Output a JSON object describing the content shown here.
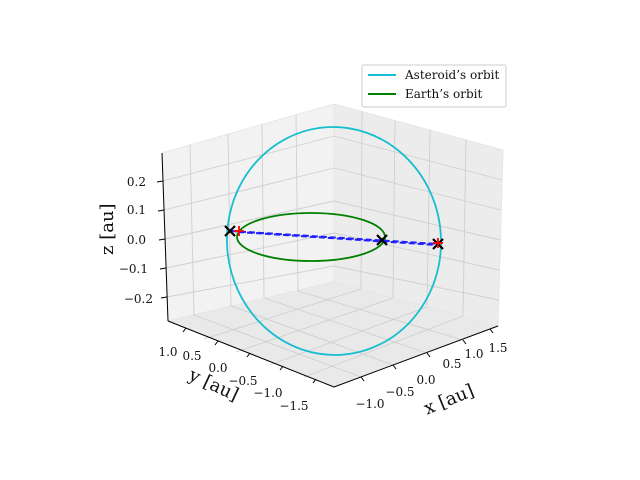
{
  "chart_data": {
    "type": "line3d",
    "xlabel": "x [au]",
    "ylabel": "y [au]",
    "zlabel": "z [au]",
    "x_ticks": [
      "−1.0",
      "−0.5",
      "0.0",
      "0.5",
      "1.0",
      "1.5"
    ],
    "y_ticks": [
      "−1.5",
      "−1.0",
      "−0.5",
      "0.0",
      "0.5",
      "1.0"
    ],
    "z_ticks": [
      "−0.2",
      "−0.1",
      "0.0",
      "0.1",
      "0.2"
    ],
    "grid": true,
    "legend": {
      "location": "top-right",
      "entries": [
        {
          "label": "Asteroid’s orbit",
          "color": "#17becf"
        },
        {
          "label": "Earth’s orbit",
          "color": "#008000"
        }
      ]
    },
    "series": [
      {
        "name": "Asteroid’s orbit",
        "color": "#17becf",
        "semi_major_axis_au": 1.47,
        "eccentricity": 0.27,
        "inclination_deg": 14,
        "ascending_node_deg": 0
      },
      {
        "name": "Earth’s orbit",
        "color": "#008000",
        "radius_au": 1.0,
        "inclination_deg": 0
      }
    ],
    "markers": [
      {
        "symbol": "x",
        "color": "#000000",
        "x": -1.0,
        "y": 0.05,
        "z": 0.02
      },
      {
        "symbol": "x",
        "color": "#000000",
        "x": 1.0,
        "y": -0.05,
        "z": -0.02
      },
      {
        "symbol": "x",
        "color": "#000000",
        "x": 1.07,
        "y": -0.84,
        "z": 0.0
      },
      {
        "symbol": "+",
        "color": "#ff0000",
        "x": -1.0,
        "y": -0.03,
        "z": 0.02
      },
      {
        "symbol": "+",
        "color": "#ff0000",
        "x": 1.07,
        "y": -0.85,
        "z": -0.02
      }
    ],
    "connectors": [
      {
        "style": "dashed",
        "color": "#1f1fff",
        "from": [
          -1.0,
          0.05,
          0.02
        ],
        "to": [
          1.07,
          -0.84,
          0.0
        ]
      },
      {
        "style": "dashed",
        "color": "#1f1fff",
        "from": [
          -1.0,
          -0.03,
          0.02
        ],
        "to": [
          1.07,
          -0.85,
          -0.02
        ]
      }
    ]
  }
}
